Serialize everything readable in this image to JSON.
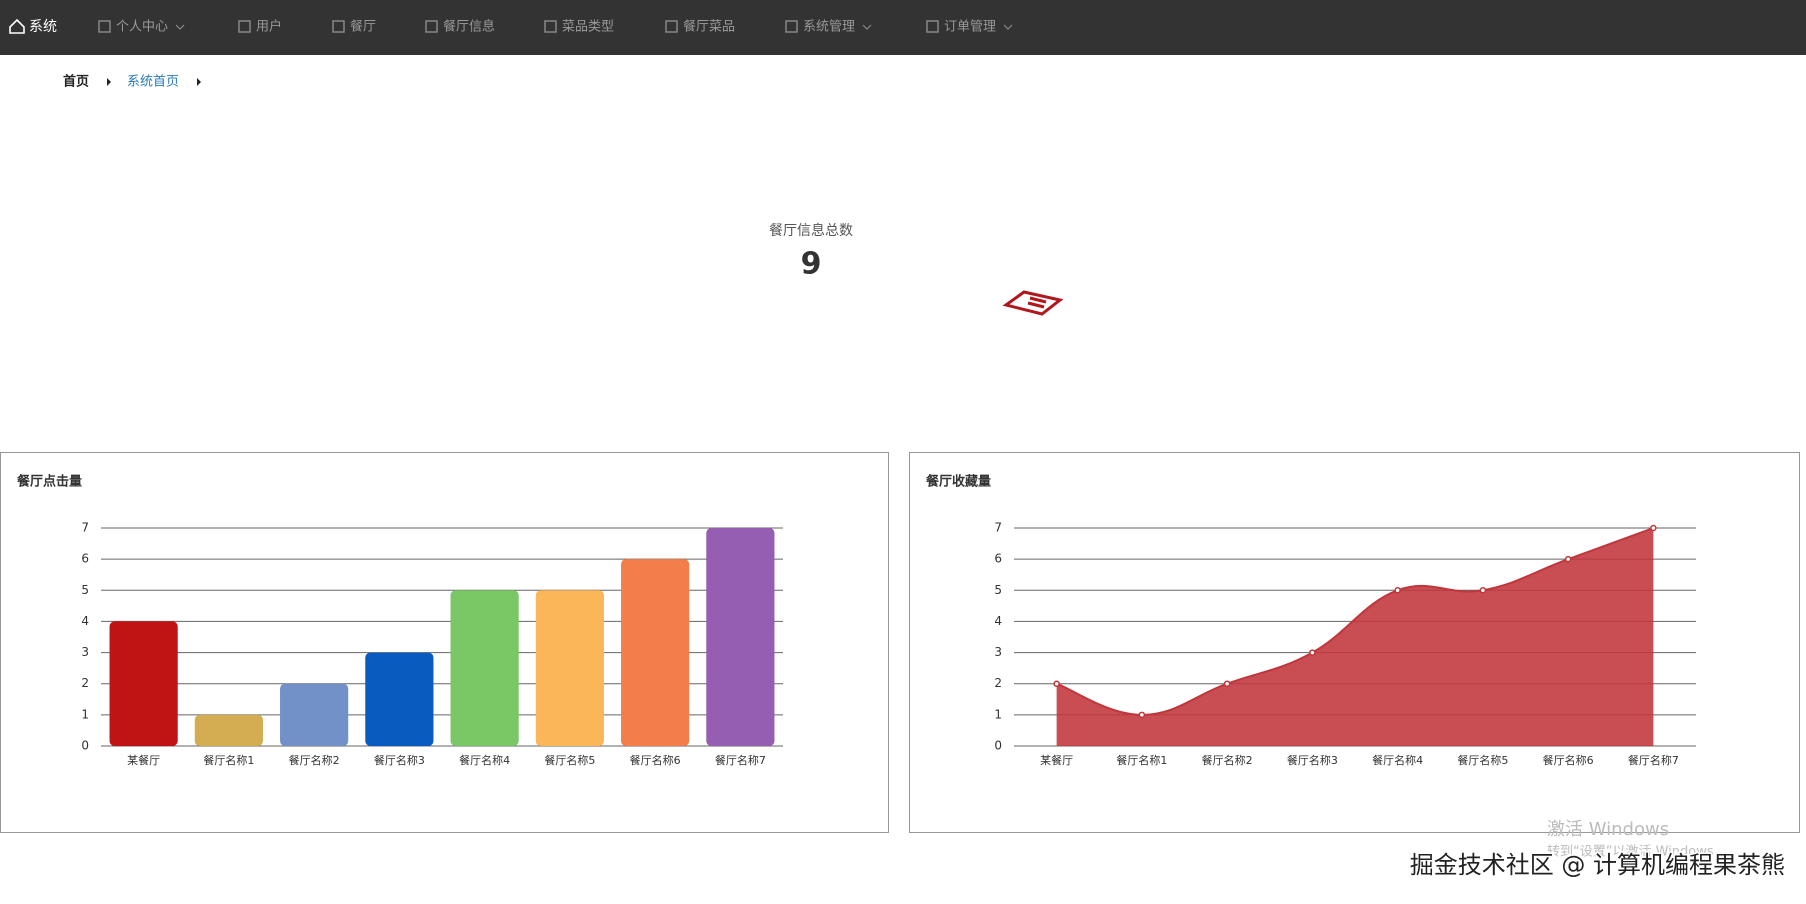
{
  "nav": {
    "brand": "系统",
    "items": [
      "个人中心",
      "用户",
      "餐厅",
      "餐厅信息",
      "菜品类型",
      "餐厅菜品",
      "系统管理",
      "订单管理"
    ]
  },
  "breadcrumb": [
    "首页",
    "系统首页"
  ],
  "stat": {
    "label": "餐厅信息总数",
    "value": 9
  },
  "chart_data": [
    {
      "type": "bar",
      "title": "餐厅点击量",
      "categories": [
        "某餐厅",
        "餐厅名称1",
        "餐厅名称2",
        "餐厅名称3",
        "餐厅名称4",
        "餐厅名称5",
        "餐厅名称6",
        "餐厅名称7"
      ],
      "values": [
        4,
        1,
        2,
        3,
        5,
        5,
        6,
        7
      ],
      "colors": [
        "#c01313",
        "#d4ad52",
        "#7391c9",
        "#0a5bbf",
        "#79c865",
        "#fbb65a",
        "#f47e4b",
        "#955eb3"
      ],
      "ylim": [
        0,
        7
      ],
      "yticks": [
        0,
        1,
        2,
        3,
        4,
        5,
        6,
        7
      ],
      "grid": true
    },
    {
      "type": "line",
      "title": "餐厅收藏量",
      "categories": [
        "某餐厅",
        "餐厅名称1",
        "餐厅名称2",
        "餐厅名称3",
        "餐厅名称4",
        "餐厅名称5",
        "餐厅名称6",
        "餐厅名称7"
      ],
      "values": [
        2,
        1,
        2,
        3,
        5,
        5,
        6,
        7
      ],
      "color": "#c0363b",
      "area": true,
      "smooth": true,
      "ylim": [
        0,
        7
      ],
      "yticks": [
        0,
        1,
        2,
        3,
        4,
        5,
        6,
        7
      ],
      "grid": true
    }
  ],
  "watermark": {
    "activate": "激活 Windows",
    "activate_hint": "转到“设置”以激活 Windows",
    "credit": "掘金技术社区 @ 计算机编程果茶熊"
  }
}
